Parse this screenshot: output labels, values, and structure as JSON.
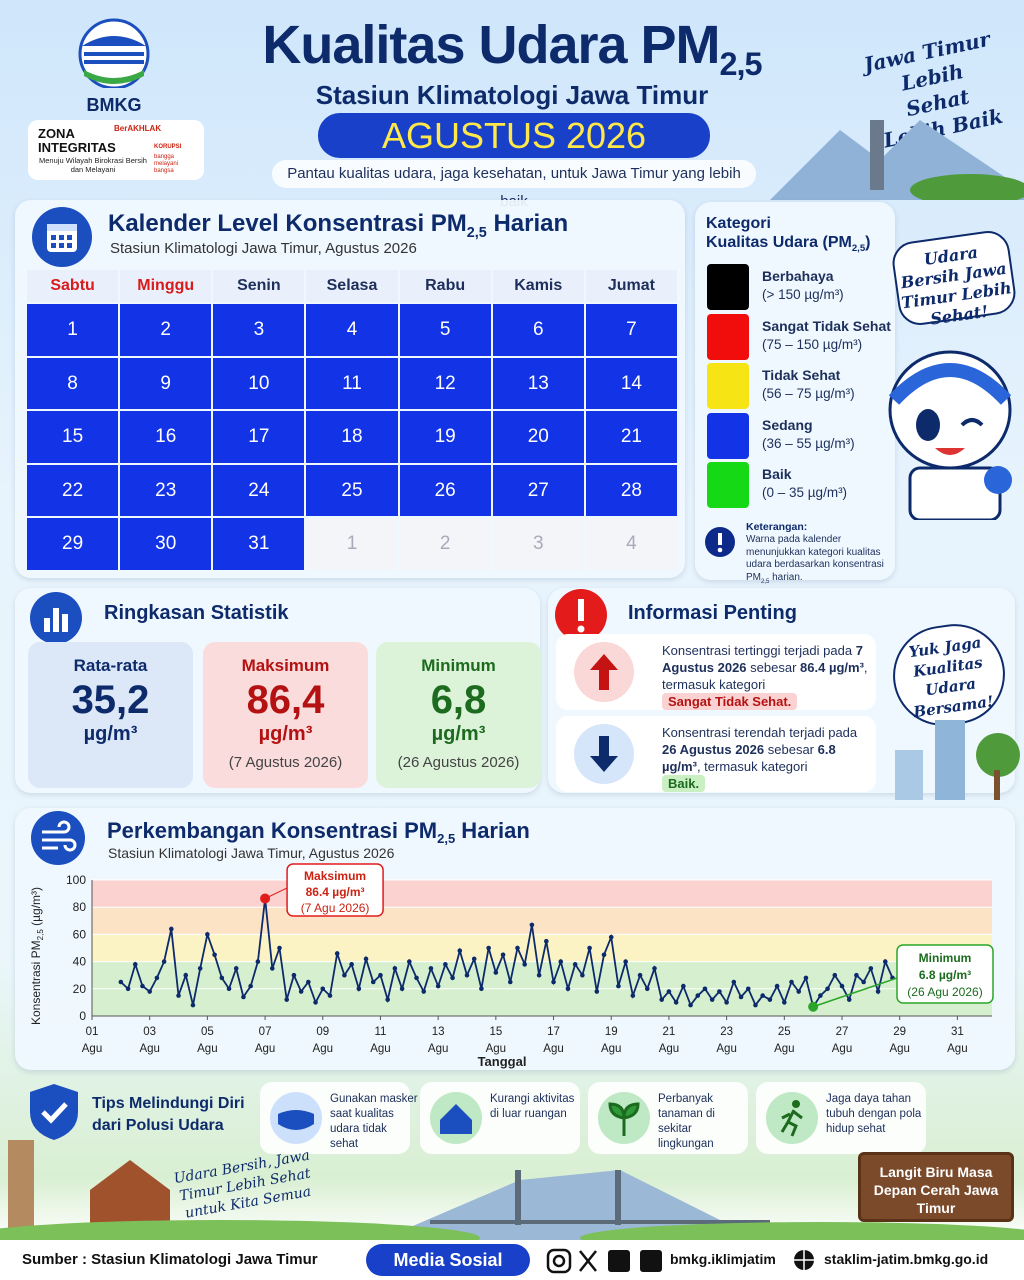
{
  "header": {
    "org": "BMKG",
    "title": "Kualitas Udara PM",
    "pm_sub": "2,5",
    "subtitle": "Stasiun Klimatologi Jawa Timur",
    "month": "AGUSTUS 2026",
    "tagline": "Pantau kualitas udara, jaga kesehatan, untuk Jawa Timur yang lebih baik",
    "zona": "ZONA",
    "integritas": "INTEGRITAS",
    "zona_text": "Menuju Wilayah Birokrasi Bersih dan Melayani",
    "berakhlak": "BerAKHLAK",
    "korupsi": "KORUPSI",
    "bangga": "bangga melayani bangsa",
    "slogan": "Jawa Timur Lebih Sehat Lebih Baik"
  },
  "calendar": {
    "title": "Kalender Level Konsentrasi PM",
    "title_tail": " Harian",
    "subtitle": "Stasiun Klimatologi Jawa Timur, Agustus 2026",
    "weekdays": [
      "Sabtu",
      "Minggu",
      "Senin",
      "Selasa",
      "Rabu",
      "Kamis",
      "Jumat"
    ],
    "days": [
      1,
      2,
      3,
      4,
      5,
      6,
      7,
      8,
      9,
      10,
      11,
      12,
      13,
      14,
      15,
      16,
      17,
      18,
      19,
      20,
      21,
      22,
      23,
      24,
      25,
      26,
      27,
      28,
      29,
      30,
      31
    ],
    "day_color": "#1233e6",
    "next_month_days": [
      1,
      2,
      3,
      4
    ]
  },
  "legend": {
    "title": "Kategori",
    "title2": "Kualitas Udara (PM",
    "title2_tail": ")",
    "categories": [
      {
        "name": "Berbahaya",
        "range": "(> 150 µg/m³)",
        "color": "#000000"
      },
      {
        "name": "Sangat Tidak Sehat",
        "range": "(75 – 150 µg/m³)",
        "color": "#f20d0d"
      },
      {
        "name": "Tidak Sehat",
        "range": "(56 – 75 µg/m³)",
        "color": "#f7e414"
      },
      {
        "name": "Sedang",
        "range": "(36 – 55 µg/m³)",
        "color": "#1233e6"
      },
      {
        "name": "Baik",
        "range": "(0 – 35 µg/m³)",
        "color": "#16d916"
      }
    ],
    "note_title": "Keterangan:",
    "note_text": "Warna pada kalender menunjukkan kategori kualitas udara berdasarkan konsentrasi PM",
    "note_tail": " harian."
  },
  "mascot_bubble": "Udara Bersih Jawa Timur Lebih Sehat!",
  "stats": {
    "title": "Ringkasan Statistik",
    "mean_label": "Rata-rata",
    "mean": "35,2",
    "unit": "µg/m³",
    "max_label": "Maksimum",
    "max": "86,4",
    "max_date": "(7 Agustus 2026)",
    "min_label": "Minimum",
    "min": "6,8",
    "min_date": "(26 Agustus 2026)"
  },
  "info": {
    "title": "Informasi Penting",
    "high_text": "Konsentrasi tertinggi terjadi pada",
    "high_date": "7 Agustus 2026",
    "high_mid": "sebesar",
    "high_amount": "86.4 µg/m³",
    "high_tail": ", termasuk kategori",
    "high_cat": "Sangat Tidak Sehat.",
    "low_text": "Konsentrasi terendah terjadi pada",
    "low_date": "26 Agustus 2026",
    "low_mid": "sebesar",
    "low_amount": "6.8 µg/m³",
    "low_tail": ", termasuk kategori",
    "low_cat": "Baik.",
    "bubble": "Yuk Jaga Kualitas Udara Bersama!"
  },
  "chart_data": {
    "type": "line",
    "title": "Perkembangan Konsentrasi PM",
    "title_tail": " Harian",
    "subtitle": "Stasiun Klimatologi Jawa Timur, Agustus 2026",
    "y_label": "Konsentrasi PM",
    "y_label_tail": " (µg/m³)",
    "x_label": "Tanggal",
    "x": [
      2,
      2.25,
      2.5,
      2.75,
      3,
      3.25,
      3.5,
      3.75,
      4,
      4.25,
      4.5,
      4.75,
      5,
      5.25,
      5.5,
      5.75,
      6,
      6.25,
      6.5,
      6.75,
      7,
      7.25,
      7.5,
      7.75,
      8,
      8.25,
      8.5,
      8.75,
      9,
      9.25,
      9.5,
      9.75,
      10,
      10.25,
      10.5,
      10.75,
      11,
      11.25,
      11.5,
      11.75,
      12,
      12.25,
      12.5,
      12.75,
      13,
      13.25,
      13.5,
      13.75,
      14,
      14.25,
      14.5,
      14.75,
      15,
      15.25,
      15.5,
      15.75,
      16,
      16.25,
      16.5,
      16.75,
      17,
      17.25,
      17.5,
      17.75,
      18,
      18.25,
      18.5,
      18.75,
      19,
      19.25,
      19.5,
      19.75,
      20,
      20.25,
      20.5,
      20.75,
      21,
      21.25,
      21.5,
      21.75,
      22,
      22.25,
      22.5,
      22.75,
      23,
      23.25,
      23.5,
      23.75,
      24,
      24.25,
      24.5,
      24.75,
      25,
      25.25,
      25.5,
      25.75,
      26,
      26.25,
      26.5,
      26.75,
      27,
      27.25,
      27.5,
      27.75,
      28,
      28.25,
      28.5,
      28.75
    ],
    "series": [
      {
        "name": "PM2,5",
        "color": "#0d2a6b",
        "values": [
          25,
          20,
          38,
          22,
          18,
          28,
          40,
          64,
          15,
          30,
          8,
          35,
          60,
          45,
          28,
          20,
          35,
          14,
          22,
          40,
          86.4,
          35,
          50,
          12,
          30,
          18,
          25,
          10,
          20,
          15,
          46,
          30,
          38,
          20,
          42,
          25,
          30,
          12,
          35,
          20,
          40,
          28,
          18,
          35,
          22,
          38,
          28,
          48,
          30,
          42,
          20,
          50,
          32,
          45,
          25,
          50,
          38,
          67,
          30,
          55,
          25,
          40,
          20,
          38,
          30,
          50,
          18,
          45,
          58,
          22,
          40,
          15,
          30,
          20,
          35,
          12,
          18,
          10,
          22,
          8,
          15,
          20,
          12,
          18,
          10,
          25,
          14,
          20,
          8,
          15,
          12,
          22,
          10,
          25,
          18,
          28,
          6.8,
          15,
          20,
          30,
          22,
          12,
          30,
          25,
          35,
          18,
          40,
          28
        ]
      }
    ],
    "xlim": [
      1,
      32.2
    ],
    "xticks": [
      {
        "value": 1,
        "label": "01"
      },
      {
        "value": 3,
        "label": "03"
      },
      {
        "value": 5,
        "label": "05"
      },
      {
        "value": 7,
        "label": "07"
      },
      {
        "value": 9,
        "label": "09"
      },
      11,
      13,
      15,
      17,
      19,
      21,
      23,
      25,
      27,
      29,
      31
    ],
    "xtick_sublabel": "Agu",
    "ylim": [
      0,
      100
    ],
    "yticks": [
      0,
      20,
      40,
      60,
      80,
      100
    ],
    "bands": [
      {
        "from": 0,
        "to": 40,
        "color": "#d6f0cf"
      },
      {
        "from": 40,
        "to": 60,
        "color": "#fbf3c4"
      },
      {
        "from": 60,
        "to": 80,
        "color": "#fde3c6"
      },
      {
        "from": 80,
        "to": 100,
        "color": "#fbd2d0"
      }
    ],
    "max_note": {
      "label": "Maksimum",
      "amount": "86.4 µg/m³",
      "date": "(7 Agu 2026)"
    },
    "min_note": {
      "label": "Minimum",
      "amount": "6.8 µg/m³",
      "date": "(26 Agu 2026)"
    }
  },
  "tips": {
    "title": "Tips Melindungi Diri dari Polusi Udara",
    "items": [
      "Gunakan masker saat kualitas udara tidak sehat",
      "Kurangi aktivitas di luar ruangan",
      "Perbanyak tanaman di sekitar lingkungan",
      "Jaga daya tahan tubuh dengan pola hidup sehat"
    ]
  },
  "bottom": {
    "slogan": "Udara Bersih, Jawa Timur Lebih Sehat untuk Kita Semua",
    "sign": "Langit Biru Masa Depan Cerah Jawa Timur"
  },
  "footer": {
    "source": "Sumber : Stasiun Klimatologi Jawa Timur",
    "media": "Media Sosial",
    "handle": "bmkg.iklimjatim",
    "site": "staklim-jatim.bmkg.go.id"
  }
}
